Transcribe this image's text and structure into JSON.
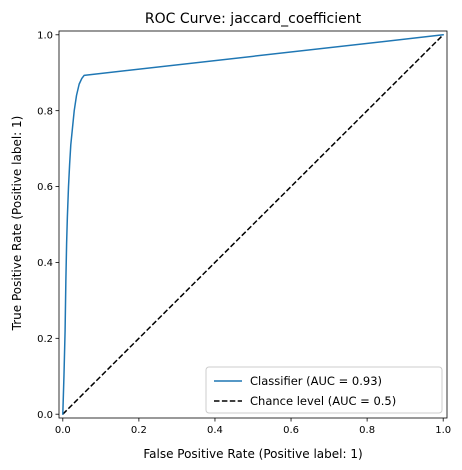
{
  "chart_data": {
    "type": "line",
    "title": "ROC Curve: jaccard_coefficient",
    "xlabel": "False Positive Rate (Positive label: 1)",
    "ylabel": "True Positive Rate (Positive label: 1)",
    "xlim": [
      -0.01,
      1.01
    ],
    "ylim": [
      -0.01,
      1.01
    ],
    "xticks": [
      0.0,
      0.2,
      0.4,
      0.6,
      0.8,
      1.0
    ],
    "yticks": [
      0.0,
      0.2,
      0.4,
      0.6,
      0.8,
      1.0
    ],
    "xtick_labels": [
      "0.0",
      "0.2",
      "0.4",
      "0.6",
      "0.8",
      "1.0"
    ],
    "ytick_labels": [
      "0.0",
      "0.2",
      "0.4",
      "0.6",
      "0.8",
      "1.0"
    ],
    "grid": false,
    "legend_position": "lower-right",
    "series": [
      {
        "name": "Classifier (AUC = 0.93)",
        "color": "#1f77b4",
        "style": "solid",
        "points": [
          [
            0.0,
            0.0
          ],
          [
            0.003,
            0.1
          ],
          [
            0.006,
            0.22
          ],
          [
            0.008,
            0.35
          ],
          [
            0.01,
            0.45
          ],
          [
            0.012,
            0.52
          ],
          [
            0.015,
            0.6
          ],
          [
            0.018,
            0.66
          ],
          [
            0.021,
            0.71
          ],
          [
            0.025,
            0.75
          ],
          [
            0.03,
            0.8
          ],
          [
            0.036,
            0.84
          ],
          [
            0.043,
            0.87
          ],
          [
            0.05,
            0.885
          ],
          [
            0.056,
            0.893
          ],
          [
            1.0,
            1.0
          ]
        ]
      },
      {
        "name": "Chance level (AUC = 0.5)",
        "color": "#000000",
        "style": "dashed",
        "points": [
          [
            0.0,
            0.0
          ],
          [
            1.0,
            1.0
          ]
        ]
      }
    ]
  }
}
